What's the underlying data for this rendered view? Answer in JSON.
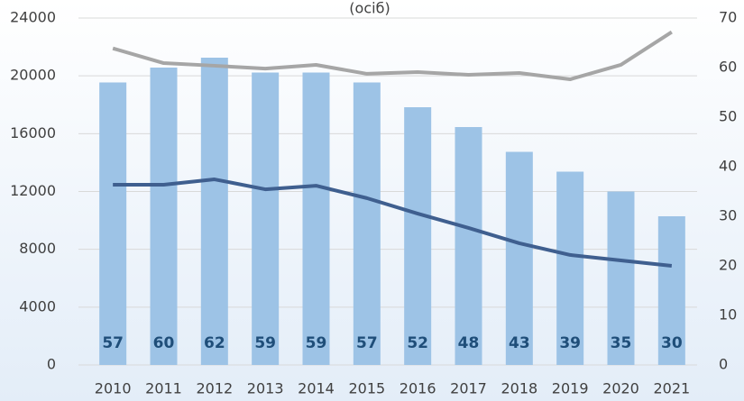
{
  "chart_data": {
    "type": "bar",
    "title": "(осіб)",
    "categories": [
      "2010",
      "2011",
      "2012",
      "2013",
      "2014",
      "2015",
      "2016",
      "2017",
      "2018",
      "2019",
      "2020",
      "2021"
    ],
    "ylim": [
      0,
      24000
    ],
    "yticks": [
      0,
      4000,
      8000,
      12000,
      16000,
      20000,
      24000
    ],
    "y2lim": [
      0,
      70
    ],
    "y2ticks": [
      0,
      10,
      20,
      30,
      40,
      50,
      60,
      70
    ],
    "series": [
      {
        "type": "bar",
        "axis": "y2",
        "color": "#9dc3e6",
        "values": [
          57,
          60,
          62,
          59,
          59,
          57,
          52,
          48,
          43,
          39,
          35,
          30
        ]
      },
      {
        "type": "line",
        "color": "#a6a6a6",
        "values": [
          21900,
          20880,
          20700,
          20500,
          20760,
          20140,
          20260,
          20070,
          20200,
          19760,
          20760,
          23030
        ]
      },
      {
        "type": "line",
        "color": "#3f5f8f",
        "values": [
          12470,
          12470,
          12840,
          12150,
          12400,
          11540,
          10470,
          9480,
          8420,
          7610,
          7230,
          6860
        ]
      }
    ]
  }
}
